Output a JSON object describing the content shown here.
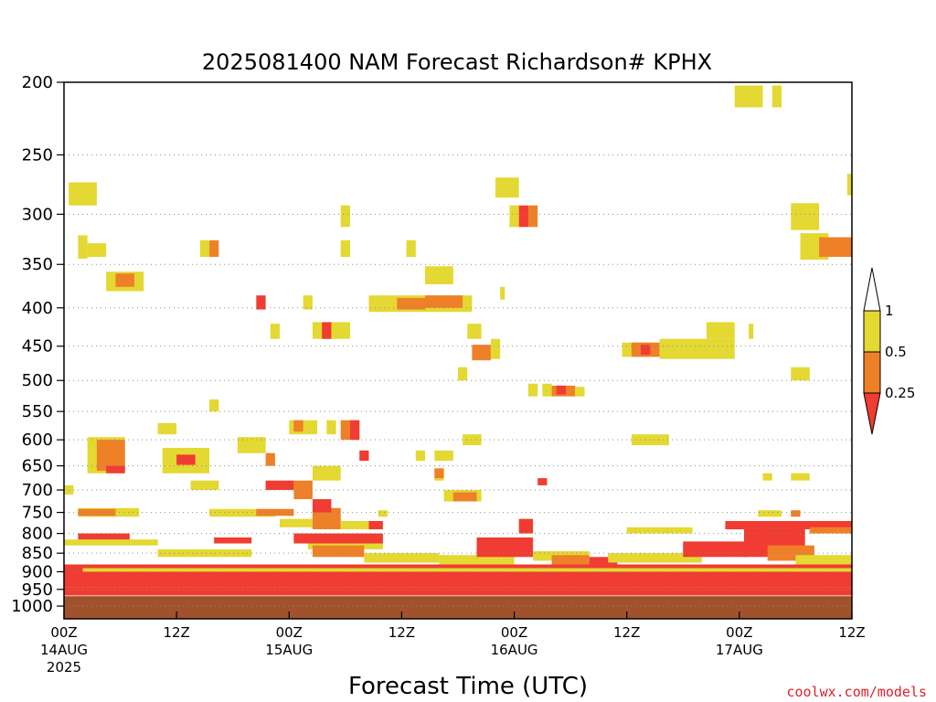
{
  "chart_data": {
    "type": "heatmap",
    "title": "2025081400 NAM Forecast Richardson# KPHX",
    "xlabel": "Forecast Time (UTC)",
    "ylabel": "",
    "x_unit": "forecast hours from 2025-08-14 00Z",
    "xlim": [
      0,
      84
    ],
    "x_ticks": [
      {
        "value": 0,
        "labels": [
          "00Z",
          "14AUG",
          "2025"
        ]
      },
      {
        "value": 12,
        "labels": [
          "12Z"
        ]
      },
      {
        "value": 24,
        "labels": [
          "00Z",
          "15AUG"
        ]
      },
      {
        "value": 36,
        "labels": [
          "12Z"
        ]
      },
      {
        "value": 48,
        "labels": [
          "00Z",
          "16AUG"
        ]
      },
      {
        "value": 60,
        "labels": [
          "12Z"
        ]
      },
      {
        "value": 72,
        "labels": [
          "00Z",
          "17AUG"
        ]
      },
      {
        "value": 84,
        "labels": [
          "12Z"
        ]
      }
    ],
    "y_unit": "hPa",
    "ylim": [
      1000,
      200
    ],
    "y_scale": "log",
    "y_reversed": true,
    "y_ticks": [
      200,
      250,
      300,
      350,
      400,
      450,
      500,
      550,
      600,
      650,
      700,
      750,
      800,
      850,
      900,
      950,
      1000
    ],
    "grid": "dotted horizontal lines at pressure ticks",
    "legend": {
      "placement": "right",
      "levels": [
        {
          "label": "0.25",
          "color": "#f03c32",
          "range": "< 0.25"
        },
        {
          "label": "0.5",
          "color": "#ee8028",
          "range": "0.25 - 0.5"
        },
        {
          "label": "1",
          "color": "#e4d832",
          "range": "0.5 - 1"
        },
        {
          "label": "",
          "color": "#ffffff",
          "range": "> 1"
        }
      ],
      "label_order": [
        "1",
        "0.5",
        "0.25"
      ]
    },
    "ground_fill": {
      "color": "#a0522d",
      "pressure_top": 970
    },
    "colors": {
      "y": "#e4d832",
      "o": "#ee8028",
      "r": "#f03c32",
      "g": "#a0522d"
    },
    "patches": [
      {
        "c": "y",
        "x": [
          0.5,
          3.5
        ],
        "p": [
          272,
          292
        ]
      },
      {
        "c": "y",
        "x": [
          1.5,
          2.5
        ],
        "p": [
          320,
          344
        ]
      },
      {
        "c": "y",
        "x": [
          2.5,
          4.5
        ],
        "p": [
          328,
          342
        ]
      },
      {
        "c": "y",
        "x": [
          4.5,
          8.5
        ],
        "p": [
          358,
          380
        ]
      },
      {
        "c": "o",
        "x": [
          5.5,
          7.5
        ],
        "p": [
          360,
          375
        ]
      },
      {
        "c": "y",
        "x": [
          14.5,
          15.5
        ],
        "p": [
          325,
          342
        ]
      },
      {
        "c": "o",
        "x": [
          15.5,
          16.5
        ],
        "p": [
          325,
          342
        ]
      },
      {
        "c": "y",
        "x": [
          29.5,
          30.5
        ],
        "p": [
          292,
          312
        ]
      },
      {
        "c": "y",
        "x": [
          29.5,
          30.5
        ],
        "p": [
          325,
          342
        ]
      },
      {
        "c": "y",
        "x": [
          36.5,
          37.5
        ],
        "p": [
          325,
          342
        ]
      },
      {
        "c": "y",
        "x": [
          38.5,
          41.5
        ],
        "p": [
          352,
          372
        ]
      },
      {
        "c": "y",
        "x": [
          32.5,
          43.5
        ],
        "p": [
          385,
          405
        ]
      },
      {
        "c": "o",
        "x": [
          35.5,
          38.5
        ],
        "p": [
          388,
          402
        ]
      },
      {
        "c": "o",
        "x": [
          38.5,
          42.5
        ],
        "p": [
          385,
          400
        ]
      },
      {
        "c": "r",
        "x": [
          20.5,
          21.5
        ],
        "p": [
          385,
          402
        ]
      },
      {
        "c": "y",
        "x": [
          25.5,
          26.5
        ],
        "p": [
          385,
          402
        ]
      },
      {
        "c": "y",
        "x": [
          22,
          23
        ],
        "p": [
          420,
          440
        ]
      },
      {
        "c": "y",
        "x": [
          26.5,
          30.5
        ],
        "p": [
          418,
          440
        ]
      },
      {
        "c": "r",
        "x": [
          27.5,
          28.5
        ],
        "p": [
          418,
          440
        ]
      },
      {
        "c": "y",
        "x": [
          42,
          43
        ],
        "p": [
          480,
          500
        ]
      },
      {
        "c": "y",
        "x": [
          43,
          44.5
        ],
        "p": [
          420,
          440
        ]
      },
      {
        "c": "y",
        "x": [
          45.5,
          46.5
        ],
        "p": [
          440,
          468
        ]
      },
      {
        "c": "o",
        "x": [
          43.5,
          45.5
        ],
        "p": [
          448,
          470
        ]
      },
      {
        "c": "y",
        "x": [
          46.5,
          47
        ],
        "p": [
          375,
          390
        ]
      },
      {
        "c": "y",
        "x": [
          46,
          48.5
        ],
        "p": [
          268,
          285
        ]
      },
      {
        "c": "y",
        "x": [
          47.5,
          48.5
        ],
        "p": [
          292,
          312
        ]
      },
      {
        "c": "r",
        "x": [
          48.5,
          49.5
        ],
        "p": [
          292,
          312
        ]
      },
      {
        "c": "o",
        "x": [
          49.5,
          50.5
        ],
        "p": [
          292,
          312
        ]
      },
      {
        "c": "y",
        "x": [
          49.5,
          50.5
        ],
        "p": [
          505,
          525
        ]
      },
      {
        "c": "y",
        "x": [
          51,
          52
        ],
        "p": [
          505,
          525
        ]
      },
      {
        "c": "o",
        "x": [
          52,
          54.5
        ],
        "p": [
          508,
          525
        ]
      },
      {
        "c": "r",
        "x": [
          52.5,
          53.5
        ],
        "p": [
          508,
          522
        ]
      },
      {
        "c": "y",
        "x": [
          54.5,
          55.5
        ],
        "p": [
          510,
          525
        ]
      },
      {
        "c": "y",
        "x": [
          59.5,
          62.5
        ],
        "p": [
          445,
          465
        ]
      },
      {
        "c": "o",
        "x": [
          60.5,
          63.5
        ],
        "p": [
          445,
          465
        ]
      },
      {
        "c": "r",
        "x": [
          61.5,
          62.5
        ],
        "p": [
          448,
          462
        ]
      },
      {
        "c": "y",
        "x": [
          63.5,
          71.5
        ],
        "p": [
          440,
          468
        ]
      },
      {
        "c": "y",
        "x": [
          68.5,
          71.5
        ],
        "p": [
          418,
          440
        ]
      },
      {
        "c": "y",
        "x": [
          73,
          73.5
        ],
        "p": [
          420,
          440
        ]
      },
      {
        "c": "y",
        "x": [
          71.5,
          74.5
        ],
        "p": [
          202,
          216
        ]
      },
      {
        "c": "y",
        "x": [
          75.5,
          76.5
        ],
        "p": [
          202,
          216
        ]
      },
      {
        "c": "y",
        "x": [
          77.5,
          80.5
        ],
        "p": [
          290,
          315
        ]
      },
      {
        "c": "y",
        "x": [
          78.5,
          81.5
        ],
        "p": [
          318,
          345
        ]
      },
      {
        "c": "o",
        "x": [
          80.5,
          84.5
        ],
        "p": [
          322,
          342
        ]
      },
      {
        "c": "y",
        "x": [
          83.5,
          84.5
        ],
        "p": [
          265,
          283
        ]
      },
      {
        "c": "y",
        "x": [
          77.5,
          79.5
        ],
        "p": [
          480,
          500
        ]
      },
      {
        "c": "y",
        "x": [
          15.5,
          16.5
        ],
        "p": [
          530,
          550
        ]
      },
      {
        "c": "y",
        "x": [
          10,
          12
        ],
        "p": [
          570,
          590
        ]
      },
      {
        "c": "y",
        "x": [
          2.5,
          6.5
        ],
        "p": [
          595,
          665
        ]
      },
      {
        "c": "o",
        "x": [
          3.5,
          6.5
        ],
        "p": [
          600,
          660
        ]
      },
      {
        "c": "r",
        "x": [
          4.5,
          6.5
        ],
        "p": [
          650,
          665
        ]
      },
      {
        "c": "y",
        "x": [
          10.5,
          15.5
        ],
        "p": [
          615,
          665
        ]
      },
      {
        "c": "r",
        "x": [
          12,
          14
        ],
        "p": [
          628,
          648
        ]
      },
      {
        "c": "y",
        "x": [
          13.5,
          16.5
        ],
        "p": [
          680,
          700
        ]
      },
      {
        "c": "y",
        "x": [
          18.5,
          21.5
        ],
        "p": [
          595,
          625
        ]
      },
      {
        "c": "o",
        "x": [
          21.5,
          22.5
        ],
        "p": [
          625,
          650
        ]
      },
      {
        "c": "y",
        "x": [
          24,
          27
        ],
        "p": [
          565,
          590
        ]
      },
      {
        "c": "o",
        "x": [
          24.5,
          25.5
        ],
        "p": [
          565,
          585
        ]
      },
      {
        "c": "y",
        "x": [
          26.5,
          29.5
        ],
        "p": [
          650,
          680
        ]
      },
      {
        "c": "r",
        "x": [
          21.5,
          24.5
        ],
        "p": [
          680,
          700
        ]
      },
      {
        "c": "o",
        "x": [
          24.5,
          26.5
        ],
        "p": [
          680,
          720
        ]
      },
      {
        "c": "y",
        "x": [
          28,
          29
        ],
        "p": [
          565,
          590
        ]
      },
      {
        "c": "o",
        "x": [
          29.5,
          31.5
        ],
        "p": [
          565,
          600
        ]
      },
      {
        "c": "r",
        "x": [
          30.5,
          31.5
        ],
        "p": [
          565,
          600
        ]
      },
      {
        "c": "r",
        "x": [
          31.5,
          32.5
        ],
        "p": [
          620,
          640
        ]
      },
      {
        "c": "y",
        "x": [
          37.5,
          38.5
        ],
        "p": [
          620,
          640
        ]
      },
      {
        "c": "y",
        "x": [
          39.5,
          41.5
        ],
        "p": [
          620,
          640
        ]
      },
      {
        "c": "y",
        "x": [
          39.5,
          40.5
        ],
        "p": [
          655,
          680
        ]
      },
      {
        "c": "o",
        "x": [
          39.5,
          40.5
        ],
        "p": [
          655,
          675
        ]
      },
      {
        "c": "y",
        "x": [
          40.5,
          44.5
        ],
        "p": [
          700,
          725
        ]
      },
      {
        "c": "o",
        "x": [
          41.5,
          44
        ],
        "p": [
          705,
          725
        ]
      },
      {
        "c": "y",
        "x": [
          42.5,
          44.5
        ],
        "p": [
          590,
          610
        ]
      },
      {
        "c": "y",
        "x": [
          60.5,
          64.5
        ],
        "p": [
          590,
          610
        ]
      },
      {
        "c": "r",
        "x": [
          50.5,
          51.5
        ],
        "p": [
          675,
          690
        ]
      },
      {
        "c": "y",
        "x": [
          74.5,
          75.5
        ],
        "p": [
          665,
          680
        ]
      },
      {
        "c": "y",
        "x": [
          77.5,
          79.5
        ],
        "p": [
          665,
          680
        ]
      },
      {
        "c": "y",
        "x": [
          0,
          1
        ],
        "p": [
          690,
          710
        ]
      },
      {
        "c": "y",
        "x": [
          1.5,
          8
        ],
        "p": [
          740,
          760
        ]
      },
      {
        "c": "o",
        "x": [
          1.5,
          5.5
        ],
        "p": [
          742,
          758
        ]
      },
      {
        "c": "y",
        "x": [
          15.5,
          22.5
        ],
        "p": [
          742,
          760
        ]
      },
      {
        "c": "o",
        "x": [
          20.5,
          24.5
        ],
        "p": [
          742,
          758
        ]
      },
      {
        "c": "y",
        "x": [
          23,
          26.5
        ],
        "p": [
          765,
          785
        ]
      },
      {
        "c": "o",
        "x": [
          26.5,
          29.5
        ],
        "p": [
          740,
          790
        ]
      },
      {
        "c": "r",
        "x": [
          26.5,
          28.5
        ],
        "p": [
          720,
          750
        ]
      },
      {
        "c": "y",
        "x": [
          29.5,
          33
        ],
        "p": [
          770,
          790
        ]
      },
      {
        "c": "r",
        "x": [
          32.5,
          34
        ],
        "p": [
          770,
          790
        ]
      },
      {
        "c": "y",
        "x": [
          33.5,
          34.5
        ],
        "p": [
          745,
          760
        ]
      },
      {
        "c": "y",
        "x": [
          74,
          76.5
        ],
        "p": [
          745,
          760
        ]
      },
      {
        "c": "o",
        "x": [
          77.5,
          78.5
        ],
        "p": [
          745,
          760
        ]
      },
      {
        "c": "y",
        "x": [
          60,
          67
        ],
        "p": [
          785,
          800
        ]
      },
      {
        "c": "r",
        "x": [
          70.5,
          84
        ],
        "p": [
          770,
          790
        ]
      },
      {
        "c": "o",
        "x": [
          79.5,
          84
        ],
        "p": [
          785,
          800
        ]
      },
      {
        "c": "y",
        "x": [
          0,
          10
        ],
        "p": [
          815,
          830
        ]
      },
      {
        "c": "r",
        "x": [
          1.5,
          7
        ],
        "p": [
          800,
          815
        ]
      },
      {
        "c": "y",
        "x": [
          10,
          20
        ],
        "p": [
          840,
          860
        ]
      },
      {
        "c": "r",
        "x": [
          16,
          20
        ],
        "p": [
          810,
          825
        ]
      },
      {
        "c": "y",
        "x": [
          26,
          34
        ],
        "p": [
          815,
          840
        ]
      },
      {
        "c": "o",
        "x": [
          26.5,
          32
        ],
        "p": [
          830,
          860
        ]
      },
      {
        "c": "r",
        "x": [
          24.5,
          34
        ],
        "p": [
          800,
          825
        ]
      },
      {
        "c": "y",
        "x": [
          32,
          40
        ],
        "p": [
          850,
          875
        ]
      },
      {
        "c": "y",
        "x": [
          40,
          48
        ],
        "p": [
          855,
          880
        ]
      },
      {
        "c": "r",
        "x": [
          44,
          50
        ],
        "p": [
          810,
          860
        ]
      },
      {
        "c": "r",
        "x": [
          48.5,
          50
        ],
        "p": [
          765,
          800
        ]
      },
      {
        "c": "y",
        "x": [
          50,
          56
        ],
        "p": [
          845,
          870
        ]
      },
      {
        "c": "o",
        "x": [
          52,
          56
        ],
        "p": [
          855,
          880
        ]
      },
      {
        "c": "r",
        "x": [
          56,
          59
        ],
        "p": [
          860,
          880
        ]
      },
      {
        "c": "y",
        "x": [
          58,
          68
        ],
        "p": [
          850,
          875
        ]
      },
      {
        "c": "r",
        "x": [
          66,
          73
        ],
        "p": [
          820,
          860
        ]
      },
      {
        "c": "r",
        "x": [
          72.5,
          79
        ],
        "p": [
          780,
          860
        ]
      },
      {
        "c": "o",
        "x": [
          75,
          80
        ],
        "p": [
          830,
          870
        ]
      },
      {
        "c": "y",
        "x": [
          78,
          84
        ],
        "p": [
          855,
          880
        ]
      },
      {
        "c": "r",
        "x": [
          0,
          84
        ],
        "p": [
          880,
          905
        ]
      },
      {
        "c": "y",
        "x": [
          2,
          84
        ],
        "p": [
          890,
          900
        ]
      },
      {
        "c": "r",
        "x": [
          0,
          84
        ],
        "p": [
          905,
          945
        ]
      },
      {
        "c": "r",
        "x": [
          0,
          84
        ],
        "p": [
          945,
          968
        ]
      },
      {
        "c": "g",
        "x": [
          0,
          84
        ],
        "p": [
          970,
          1040
        ]
      }
    ]
  },
  "footer": {
    "credit": "coolwx.com/models"
  }
}
